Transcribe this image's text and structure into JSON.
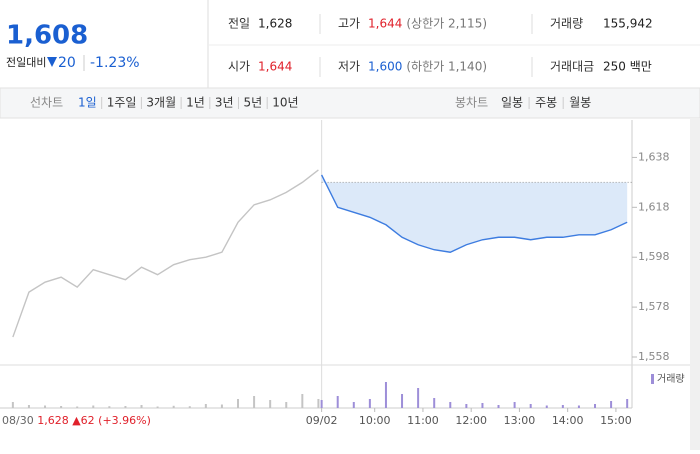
{
  "header": {
    "price": "1,608",
    "change_label": "전일대비",
    "change": "20",
    "change_rate": "-1.23%",
    "info": [
      {
        "label": "전일",
        "value": "1,628",
        "color": "#222222"
      },
      {
        "label": "고가",
        "value": "1,644",
        "note": "(상한가 2,115)",
        "color": "#e0212b"
      },
      {
        "label": "거래량",
        "value": "155,942",
        "color": "#222222"
      },
      {
        "label": "시가",
        "value": "1,644",
        "color": "#e0212b"
      },
      {
        "label": "저가",
        "value": "1,600",
        "note": "(하한가 1,140)",
        "color": "#1a5fd1"
      },
      {
        "label": "거래대금",
        "value": "250 백만",
        "color": "#222222"
      }
    ]
  },
  "tabs": {
    "line_label": "선차트",
    "line": [
      "1일",
      "1주일",
      "3개월",
      "1년",
      "3년",
      "5년",
      "10년"
    ],
    "selected_index": 0,
    "candle_label": "봉차트",
    "candle": [
      "일봉",
      "주봉",
      "월봉"
    ]
  },
  "chart_data": {
    "type": "line",
    "xlim": [
      -16,
      770
    ],
    "ylim": [
      1556,
      1653
    ],
    "yticks": [
      {
        "value": 1638,
        "label": "1,638"
      },
      {
        "value": 1618,
        "label": "1,618"
      },
      {
        "value": 1598,
        "label": "1,598"
      },
      {
        "value": 1578,
        "label": "1,578"
      },
      {
        "value": 1558,
        "label": "1,558"
      }
    ],
    "xticks": [
      {
        "value": 384,
        "label": "09/02"
      },
      {
        "value": 450,
        "label": "10:00"
      },
      {
        "value": 510,
        "label": "11:00"
      },
      {
        "value": 570,
        "label": "12:00"
      },
      {
        "value": 630,
        "label": "13:00"
      },
      {
        "value": 690,
        "label": "14:00"
      },
      {
        "value": 750,
        "label": "15:00"
      }
    ],
    "baseline": 1628,
    "series": [
      {
        "color": "#c4c4c4",
        "x": [
          0,
          20,
          40,
          60,
          80,
          100,
          120,
          140,
          160,
          180,
          200,
          220,
          240,
          260,
          280,
          300,
          320,
          340,
          360,
          380
        ],
        "values": [
          1566,
          1584,
          1588,
          1590,
          1586,
          1593,
          1591,
          1589,
          1594,
          1591,
          1595,
          1597,
          1598,
          1600,
          1612,
          1619,
          1621,
          1624,
          1628,
          1633
        ],
        "volume": [
          6000,
          3000,
          2500,
          2000,
          1500,
          2500,
          1800,
          2000,
          3000,
          1500,
          2200,
          1800,
          4000,
          3500,
          9000,
          12000,
          8000,
          6000,
          14000,
          9000
        ]
      },
      {
        "color": "#3d7ce0",
        "fill": "#dce9f9",
        "x": [
          384,
          404,
          424,
          444,
          464,
          484,
          504,
          524,
          544,
          564,
          584,
          604,
          624,
          644,
          664,
          684,
          704,
          724,
          744,
          764
        ],
        "values": [
          1631,
          1618,
          1616,
          1614,
          1611,
          1606,
          1603,
          1601,
          1600,
          1603,
          1605,
          1606,
          1606,
          1605,
          1606,
          1606,
          1607,
          1607,
          1609,
          1612
        ],
        "volume": [
          8000,
          12000,
          6000,
          9000,
          26000,
          14000,
          20000,
          10000,
          6000,
          4000,
          5000,
          3000,
          6000,
          4000,
          2500,
          3000,
          2500,
          4000,
          7000,
          9000
        ]
      }
    ],
    "volume_legend": "거래량",
    "volume_color": "#9d8ed8",
    "volume_ylim": [
      0,
      40000
    ],
    "annotation": {
      "date": "08/30",
      "close": "1,628",
      "change": "▲62",
      "rate": "(+3.96%)"
    }
  }
}
